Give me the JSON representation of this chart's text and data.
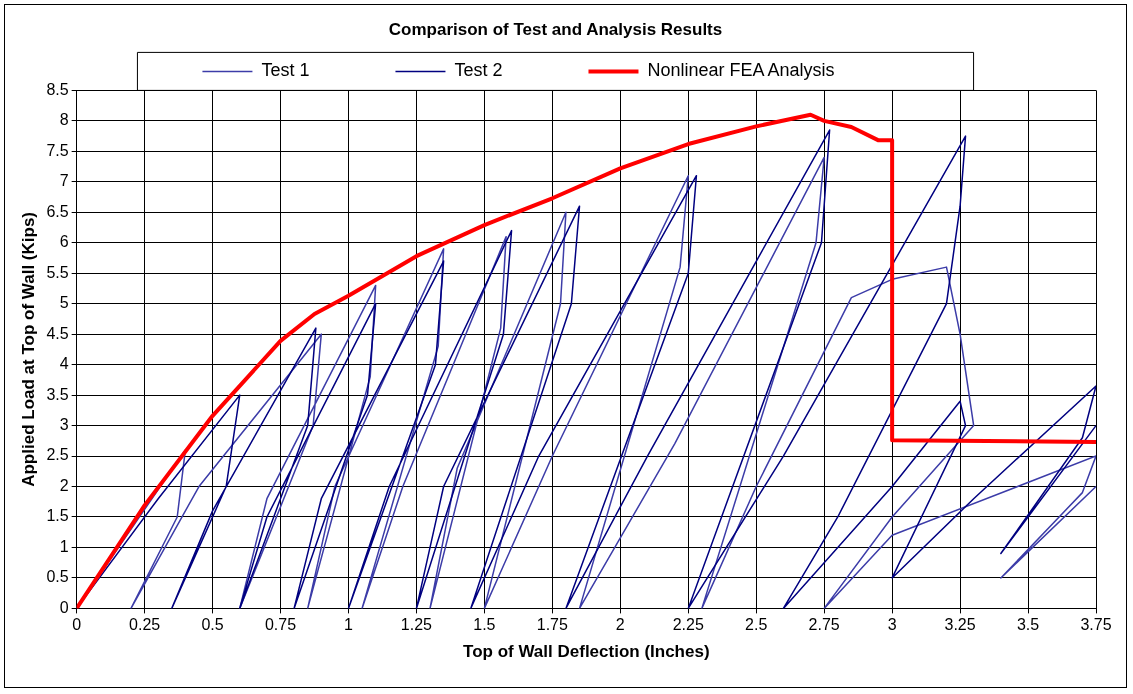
{
  "chart_data": {
    "type": "line",
    "title": "Comparison of Test and Analysis Results",
    "xlabel": "Top of Wall Deflection (Inches)",
    "ylabel": "Applied Load at Top of Wall (Kips)",
    "xlim": [
      0,
      3.75
    ],
    "xticks": [
      0,
      0.25,
      0.5,
      0.75,
      1,
      1.25,
      1.5,
      1.75,
      2,
      2.25,
      2.5,
      2.75,
      3,
      3.25,
      3.5,
      3.75
    ],
    "ylim": [
      0,
      8.5
    ],
    "yticks": [
      0,
      0.5,
      1,
      1.5,
      2,
      2.5,
      3,
      3.5,
      4,
      4.5,
      5,
      5.5,
      6,
      6.5,
      7,
      7.5,
      8,
      8.5
    ],
    "grid": true,
    "legend": "top",
    "series": [
      {
        "name": "Test 1",
        "color": "#3c3ca8",
        "x": [
          0,
          0.4,
          0.37,
          0.2,
          0.45,
          0.9,
          0.87,
          0.6,
          0.7,
          1.1,
          1.08,
          0.85,
          0.95,
          1.35,
          1.33,
          1.05,
          1.2,
          1.58,
          1.56,
          1.3,
          1.4,
          1.8,
          1.78,
          1.5,
          1.75,
          2.25,
          2.22,
          1.85,
          2.2,
          2.75,
          2.72,
          2.3,
          2.5,
          2.85,
          3.0,
          3.2,
          3.25,
          3.3,
          3.0,
          2.75,
          3.0,
          3.75,
          3.7,
          3.4,
          3.75
        ],
        "values": [
          0,
          2.6,
          1.5,
          0,
          2,
          4.5,
          3,
          0,
          1.8,
          5.3,
          3.8,
          0,
          2,
          5.9,
          4.3,
          0,
          2,
          6.1,
          4.6,
          0,
          2.3,
          6.5,
          5,
          0,
          2.5,
          7.1,
          5.6,
          0,
          2.7,
          7.4,
          6,
          0,
          2,
          5.1,
          5.4,
          5.6,
          4.5,
          3.0,
          1.5,
          0,
          1.2,
          2.5,
          1.9,
          0.5,
          2.0
        ]
      },
      {
        "name": "Test 2",
        "color": "#000080",
        "x": [
          0,
          0.3,
          0.6,
          0.55,
          0.35,
          0.5,
          0.88,
          0.85,
          0.6,
          0.7,
          1.1,
          1.07,
          0.8,
          0.9,
          1.35,
          1.32,
          1.0,
          1.15,
          1.6,
          1.57,
          1.25,
          1.35,
          1.85,
          1.82,
          1.45,
          1.7,
          2.28,
          2.25,
          1.8,
          2.1,
          2.77,
          2.74,
          2.25,
          2.6,
          3.27,
          3.25,
          3.2,
          2.8,
          2.6,
          3.0,
          3.25,
          3.27,
          3.0,
          3.3,
          3.75,
          3.7,
          3.4,
          3.75
        ],
        "values": [
          0,
          1.8,
          3.5,
          2,
          0,
          1.6,
          4.6,
          3,
          0,
          1.5,
          5.0,
          3.5,
          0,
          1.8,
          5.7,
          4,
          0,
          2,
          6.2,
          4.5,
          0,
          2,
          6.6,
          5,
          0,
          2.5,
          7.1,
          5.5,
          0,
          2.5,
          7.85,
          6,
          0,
          2.5,
          7.75,
          6.6,
          5,
          1.5,
          0,
          2,
          3.4,
          3.0,
          0.5,
          1.8,
          3.65,
          2.8,
          0.9,
          3.0
        ]
      },
      {
        "name": "Nonlinear FEA Analysis",
        "color": "#ff0000",
        "x": [
          0,
          0.25,
          0.5,
          0.75,
          0.875,
          1,
          1.25,
          1.5,
          1.75,
          2,
          2.25,
          2.5,
          2.7,
          2.75,
          2.85,
          2.95,
          3.0,
          3.0,
          3.75
        ],
        "values": [
          0,
          1.69,
          3.16,
          4.39,
          4.83,
          5.13,
          5.78,
          6.29,
          6.73,
          7.22,
          7.62,
          7.91,
          8.1,
          8.0,
          7.9,
          7.68,
          7.68,
          2.76,
          2.73
        ]
      }
    ]
  }
}
